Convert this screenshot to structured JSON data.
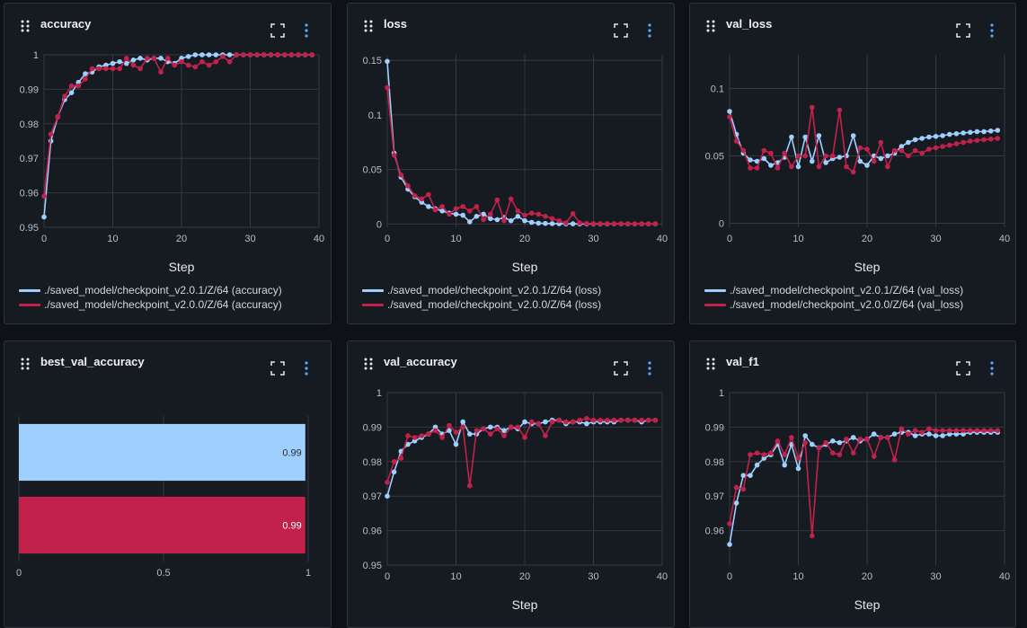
{
  "colors": {
    "v201": "#9ecfff",
    "v200": "#c2214b"
  },
  "series_names": [
    "./saved_model/checkpoint_v2.0.1/Z/64",
    "./saved_model/checkpoint_v2.0.0/Z/64"
  ],
  "panels": [
    {
      "title": "accuracy",
      "legend_labels": [
        "./saved_model/checkpoint_v2.0.1/Z/64 (accuracy)",
        "./saved_model/checkpoint_v2.0.0/Z/64 (accuracy)"
      ]
    },
    {
      "title": "loss",
      "legend_labels": [
        "./saved_model/checkpoint_v2.0.1/Z/64 (loss)",
        "./saved_model/checkpoint_v2.0.0/Z/64 (loss)"
      ]
    },
    {
      "title": "val_loss",
      "legend_labels": [
        "./saved_model/checkpoint_v2.0.1/Z/64 (val_loss)",
        "./saved_model/checkpoint_v2.0.0/Z/64 (val_loss)"
      ]
    },
    {
      "title": "best_val_accuracy",
      "legend_labels": []
    },
    {
      "title": "val_accuracy",
      "legend_labels": []
    },
    {
      "title": "val_f1",
      "legend_labels": []
    }
  ],
  "chart_data": [
    {
      "type": "line",
      "title": "accuracy",
      "xlabel": "Step",
      "ylabel": "",
      "xlim": [
        0,
        40
      ],
      "ylim": [
        0.95,
        1.0
      ],
      "xticks": [
        0,
        10,
        20,
        30,
        40
      ],
      "yticks": [
        0.95,
        0.96,
        0.97,
        0.98,
        0.99,
        1
      ],
      "ytick_labels": [
        "0.95",
        "0.96",
        "0.97",
        "0.98",
        "0.99",
        "1"
      ],
      "grid": true,
      "series": [
        {
          "name": "./saved_model/checkpoint_v2.0.1/Z/64 (accuracy)",
          "x": [
            0,
            1,
            2,
            3,
            4,
            5,
            6,
            7,
            8,
            9,
            10,
            11,
            12,
            13,
            14,
            15,
            16,
            17,
            18,
            19,
            20,
            21,
            22,
            23,
            24,
            25,
            26,
            27,
            28,
            29,
            30,
            31,
            32,
            33,
            34,
            35,
            36,
            37,
            38,
            39
          ],
          "values": [
            0.953,
            0.975,
            0.982,
            0.987,
            0.989,
            0.992,
            0.9945,
            0.995,
            0.9965,
            0.997,
            0.9975,
            0.998,
            0.9975,
            0.9985,
            0.999,
            0.9985,
            0.999,
            0.999,
            0.998,
            0.9975,
            0.999,
            0.9995,
            1.0,
            1.0,
            1.0,
            1.0,
            1.0,
            1.0,
            1.0,
            1.0,
            1.0,
            1.0,
            1.0,
            1.0,
            1.0,
            1.0,
            1.0,
            1.0,
            1.0,
            1.0
          ]
        },
        {
          "name": "./saved_model/checkpoint_v2.0.0/Z/64 (accuracy)",
          "x": [
            0,
            1,
            2,
            3,
            4,
            5,
            6,
            7,
            8,
            9,
            10,
            11,
            12,
            13,
            14,
            15,
            16,
            17,
            18,
            19,
            20,
            21,
            22,
            23,
            24,
            25,
            26,
            27,
            28,
            29,
            30,
            31,
            32,
            33,
            34,
            35,
            36,
            37,
            38,
            39
          ],
          "values": [
            0.959,
            0.977,
            0.982,
            0.988,
            0.991,
            0.991,
            0.993,
            0.996,
            0.996,
            0.996,
            0.996,
            0.996,
            0.999,
            0.997,
            0.996,
            0.999,
            0.999,
            0.995,
            0.999,
            0.997,
            0.998,
            0.997,
            0.9965,
            0.998,
            0.997,
            0.998,
            0.9995,
            0.998,
            1.0,
            1.0,
            1.0,
            1.0,
            1.0,
            1.0,
            1.0,
            1.0,
            1.0,
            1.0,
            1.0,
            1.0
          ]
        }
      ]
    },
    {
      "type": "line",
      "title": "loss",
      "xlabel": "Step",
      "ylabel": "",
      "xlim": [
        0,
        40
      ],
      "ylim": [
        -0.003,
        0.155
      ],
      "xticks": [
        0,
        10,
        20,
        30,
        40
      ],
      "yticks": [
        0,
        0.05,
        0.1,
        0.15
      ],
      "ytick_labels": [
        "0",
        "0.05",
        "0.1",
        "0.15"
      ],
      "grid": true,
      "series": [
        {
          "name": "./saved_model/checkpoint_v2.0.1/Z/64 (loss)",
          "x": [
            0,
            1,
            2,
            3,
            4,
            5,
            6,
            7,
            8,
            9,
            10,
            11,
            12,
            13,
            14,
            15,
            16,
            17,
            18,
            19,
            20,
            21,
            22,
            23,
            24,
            25,
            26,
            27,
            28,
            29,
            30,
            31,
            32,
            33,
            34,
            35,
            36,
            37,
            38,
            39
          ],
          "values": [
            0.149,
            0.065,
            0.043,
            0.032,
            0.025,
            0.02,
            0.016,
            0.014,
            0.012,
            0.01,
            0.009,
            0.008,
            0.002,
            0.007,
            0.009,
            0.005,
            0.004,
            0.006,
            0.003,
            0.007,
            0.003,
            0.0015,
            0.0008,
            0.0005,
            0.0004,
            0.0003,
            0.0002,
            0.0002,
            0.0001,
            0.0001,
            0.0001,
            0.0001,
            0.0001,
            0.0001,
            0.0001,
            0.0001,
            0.0001,
            0.0001,
            0.0001,
            0.0001
          ]
        },
        {
          "name": "./saved_model/checkpoint_v2.0.0/Z/64 (loss)",
          "x": [
            0,
            1,
            2,
            3,
            4,
            5,
            6,
            7,
            8,
            9,
            10,
            11,
            12,
            13,
            14,
            15,
            16,
            17,
            18,
            19,
            20,
            21,
            22,
            23,
            24,
            25,
            26,
            27,
            28,
            29,
            30,
            31,
            32,
            33,
            34,
            35,
            36,
            37,
            38,
            39
          ],
          "values": [
            0.125,
            0.063,
            0.045,
            0.035,
            0.026,
            0.023,
            0.027,
            0.013,
            0.016,
            0.009,
            0.014,
            0.016,
            0.012,
            0.016,
            0.004,
            0.009,
            0.022,
            0.003,
            0.023,
            0.012,
            0.008,
            0.01,
            0.009,
            0.007,
            0.005,
            0.003,
            0.001,
            0.0095,
            0.001,
            0.0005,
            0.0004,
            0.0003,
            0.0003,
            0.0002,
            0.0002,
            0.0002,
            0.0002,
            0.0001,
            0.0001,
            0.0001
          ]
        }
      ]
    },
    {
      "type": "line",
      "title": "val_loss",
      "xlabel": "Step",
      "ylabel": "",
      "xlim": [
        0,
        40
      ],
      "ylim": [
        -0.003,
        0.125
      ],
      "xticks": [
        0,
        10,
        20,
        30,
        40
      ],
      "yticks": [
        0,
        0.05,
        0.1
      ],
      "ytick_labels": [
        "0",
        "0.05",
        "0.1"
      ],
      "grid": true,
      "series": [
        {
          "name": "./saved_model/checkpoint_v2.0.1/Z/64 (val_loss)",
          "x": [
            0,
            1,
            2,
            3,
            4,
            5,
            6,
            7,
            8,
            9,
            10,
            11,
            12,
            13,
            14,
            15,
            16,
            17,
            18,
            19,
            20,
            21,
            22,
            23,
            24,
            25,
            26,
            27,
            28,
            29,
            30,
            31,
            32,
            33,
            34,
            35,
            36,
            37,
            38,
            39
          ],
          "values": [
            0.083,
            0.066,
            0.052,
            0.047,
            0.046,
            0.048,
            0.043,
            0.045,
            0.049,
            0.064,
            0.042,
            0.064,
            0.046,
            0.065,
            0.045,
            0.048,
            0.049,
            0.05,
            0.065,
            0.046,
            0.043,
            0.05,
            0.048,
            0.05,
            0.052,
            0.057,
            0.06,
            0.062,
            0.063,
            0.064,
            0.0645,
            0.065,
            0.066,
            0.0665,
            0.067,
            0.0675,
            0.068,
            0.068,
            0.0685,
            0.069
          ]
        },
        {
          "name": "./saved_model/checkpoint_v2.0.0/Z/64 (val_loss)",
          "x": [
            0,
            1,
            2,
            3,
            4,
            5,
            6,
            7,
            8,
            9,
            10,
            11,
            12,
            13,
            14,
            15,
            16,
            17,
            18,
            19,
            20,
            21,
            22,
            23,
            24,
            25,
            26,
            27,
            28,
            29,
            30,
            31,
            32,
            33,
            34,
            35,
            36,
            37,
            38,
            39
          ],
          "values": [
            0.079,
            0.061,
            0.054,
            0.041,
            0.041,
            0.054,
            0.052,
            0.041,
            0.052,
            0.042,
            0.05,
            0.05,
            0.086,
            0.042,
            0.05,
            0.05,
            0.084,
            0.042,
            0.038,
            0.056,
            0.055,
            0.046,
            0.06,
            0.042,
            0.054,
            0.054,
            0.05,
            0.054,
            0.052,
            0.055,
            0.056,
            0.057,
            0.058,
            0.059,
            0.06,
            0.061,
            0.0615,
            0.062,
            0.0625,
            0.063
          ]
        }
      ]
    },
    {
      "type": "bar",
      "title": "best_val_accuracy",
      "orientation": "horizontal",
      "categories": [
        "./saved_model/checkpoint_v2.0.1/Z/64",
        "./saved_model/checkpoint_v2.0.0/Z/64"
      ],
      "values": [
        0.99,
        0.99
      ],
      "value_labels": [
        "0.99",
        "0.99"
      ],
      "xlim": [
        0,
        1
      ],
      "xticks": [
        0,
        0.5,
        1
      ],
      "xtick_labels": [
        "0",
        "0.5",
        "1"
      ],
      "grid": true
    },
    {
      "type": "line",
      "title": "val_accuracy",
      "xlabel": "Step",
      "ylabel": "",
      "xlim": [
        0,
        40
      ],
      "ylim": [
        0.95,
        1.0
      ],
      "xticks": [
        0,
        10,
        20,
        30,
        40
      ],
      "yticks": [
        0.95,
        0.96,
        0.97,
        0.98,
        0.99,
        1
      ],
      "ytick_labels": [
        "0.95",
        "0.96",
        "0.97",
        "0.98",
        "0.99",
        "1"
      ],
      "grid": true,
      "series": [
        {
          "name": "./saved_model/checkpoint_v2.0.1/Z/64 (val_accuracy)",
          "x": [
            0,
            1,
            2,
            3,
            4,
            5,
            6,
            7,
            8,
            9,
            10,
            11,
            12,
            13,
            14,
            15,
            16,
            17,
            18,
            19,
            20,
            21,
            22,
            23,
            24,
            25,
            26,
            27,
            28,
            29,
            30,
            31,
            32,
            33,
            34,
            35,
            36,
            37,
            38,
            39
          ],
          "values": [
            0.97,
            0.977,
            0.983,
            0.985,
            0.986,
            0.987,
            0.988,
            0.99,
            0.988,
            0.989,
            0.985,
            0.9915,
            0.988,
            0.988,
            0.9895,
            0.99,
            0.99,
            0.989,
            0.99,
            0.9895,
            0.9915,
            0.991,
            0.991,
            0.9915,
            0.992,
            0.992,
            0.991,
            0.9915,
            0.9915,
            0.991,
            0.9915,
            0.9915,
            0.9915,
            0.9915,
            0.992,
            0.992,
            0.992,
            0.9915,
            0.992,
            0.992
          ]
        },
        {
          "name": "./saved_model/checkpoint_v2.0.0/Z/64 (val_accuracy)",
          "x": [
            0,
            1,
            2,
            3,
            4,
            5,
            6,
            7,
            8,
            9,
            10,
            11,
            12,
            13,
            14,
            15,
            16,
            17,
            18,
            19,
            20,
            21,
            22,
            23,
            24,
            25,
            26,
            27,
            28,
            29,
            30,
            31,
            32,
            33,
            34,
            35,
            36,
            37,
            38,
            39
          ],
          "values": [
            0.974,
            0.98,
            0.981,
            0.9875,
            0.987,
            0.9875,
            0.988,
            0.989,
            0.987,
            0.9905,
            0.9885,
            0.99,
            0.973,
            0.989,
            0.9895,
            0.988,
            0.9895,
            0.9875,
            0.99,
            0.99,
            0.987,
            0.9915,
            0.991,
            0.9875,
            0.9915,
            0.992,
            0.9915,
            0.9915,
            0.992,
            0.9925,
            0.992,
            0.992,
            0.992,
            0.992,
            0.992,
            0.992,
            0.992,
            0.992,
            0.992,
            0.992
          ]
        }
      ]
    },
    {
      "type": "line",
      "title": "val_f1",
      "xlabel": "Step",
      "ylabel": "",
      "xlim": [
        0,
        40
      ],
      "ylim": [
        0.95,
        1.0
      ],
      "xticks": [
        0,
        10,
        20,
        30,
        40
      ],
      "yticks": [
        0.96,
        0.97,
        0.98,
        0.99,
        1
      ],
      "ytick_labels": [
        "0.96",
        "0.97",
        "0.98",
        "0.99",
        "1"
      ],
      "grid": true,
      "series": [
        {
          "name": "./saved_model/checkpoint_v2.0.1/Z/64 (val_f1)",
          "x": [
            0,
            1,
            2,
            3,
            4,
            5,
            6,
            7,
            8,
            9,
            10,
            11,
            12,
            13,
            14,
            15,
            16,
            17,
            18,
            19,
            20,
            21,
            22,
            23,
            24,
            25,
            26,
            27,
            28,
            29,
            30,
            31,
            32,
            33,
            34,
            35,
            36,
            37,
            38,
            39
          ],
          "values": [
            0.956,
            0.968,
            0.976,
            0.976,
            0.979,
            0.981,
            0.982,
            0.985,
            0.979,
            0.985,
            0.978,
            0.9875,
            0.985,
            0.984,
            0.985,
            0.986,
            0.9855,
            0.986,
            0.987,
            0.986,
            0.9865,
            0.988,
            0.987,
            0.987,
            0.988,
            0.9885,
            0.9885,
            0.9875,
            0.988,
            0.988,
            0.9875,
            0.9875,
            0.988,
            0.988,
            0.988,
            0.9885,
            0.9885,
            0.9885,
            0.9885,
            0.9885
          ]
        },
        {
          "name": "./saved_model/checkpoint_v2.0.0/Z/64 (val_f1)",
          "x": [
            0,
            1,
            2,
            3,
            4,
            5,
            6,
            7,
            8,
            9,
            10,
            11,
            12,
            13,
            14,
            15,
            16,
            17,
            18,
            19,
            20,
            21,
            22,
            23,
            24,
            25,
            26,
            27,
            28,
            29,
            30,
            31,
            32,
            33,
            34,
            35,
            36,
            37,
            38,
            39
          ],
          "values": [
            0.962,
            0.9725,
            0.972,
            0.982,
            0.9825,
            0.982,
            0.9825,
            0.986,
            0.982,
            0.987,
            0.981,
            0.9855,
            0.9585,
            0.984,
            0.9855,
            0.9825,
            0.982,
            0.9865,
            0.9825,
            0.9865,
            0.9865,
            0.9815,
            0.987,
            0.987,
            0.9805,
            0.9895,
            0.988,
            0.989,
            0.9885,
            0.9895,
            0.989,
            0.989,
            0.989,
            0.989,
            0.989,
            0.989,
            0.989,
            0.989,
            0.989,
            0.989
          ]
        }
      ]
    }
  ]
}
